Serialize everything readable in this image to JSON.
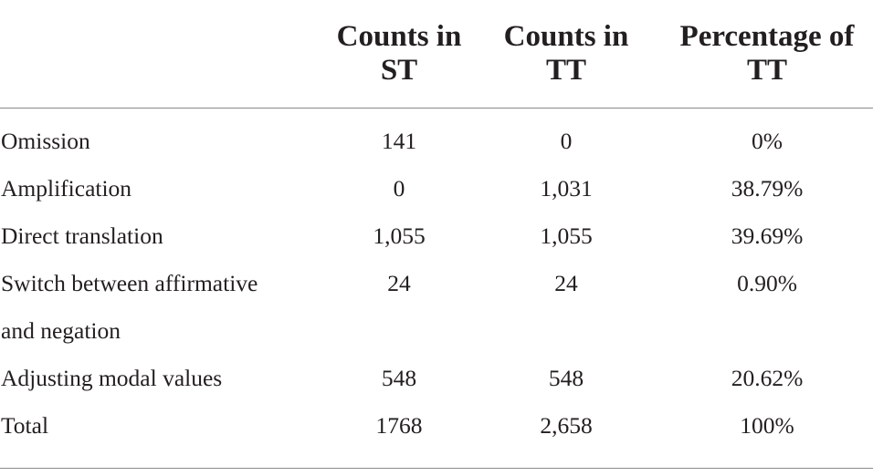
{
  "table": {
    "headers": [
      "",
      "Counts in ST",
      "Counts in TT",
      "Percentage of TT"
    ],
    "header_lines": [
      [
        "",
        ""
      ],
      [
        "Counts in",
        "ST"
      ],
      [
        "Counts in",
        "TT"
      ],
      [
        "Percentage of",
        "TT"
      ]
    ],
    "rows": [
      {
        "label_lines": [
          "Omission"
        ],
        "st": "141",
        "tt": "0",
        "pct": "0%"
      },
      {
        "label_lines": [
          "Amplification"
        ],
        "st": "0",
        "tt": "1,031",
        "pct": "38.79%"
      },
      {
        "label_lines": [
          "Direct translation"
        ],
        "st": "1,055",
        "tt": "1,055",
        "pct": "39.69%"
      },
      {
        "label_lines": [
          "Switch between affirmative",
          "and negation"
        ],
        "st": "24",
        "tt": "24",
        "pct": "0.90%"
      },
      {
        "label_lines": [
          "Adjusting modal values"
        ],
        "st": "548",
        "tt": "548",
        "pct": "20.62%"
      },
      {
        "label_lines": [
          "Total"
        ],
        "st": "1768",
        "tt": "2,658",
        "pct": "100%"
      }
    ]
  }
}
